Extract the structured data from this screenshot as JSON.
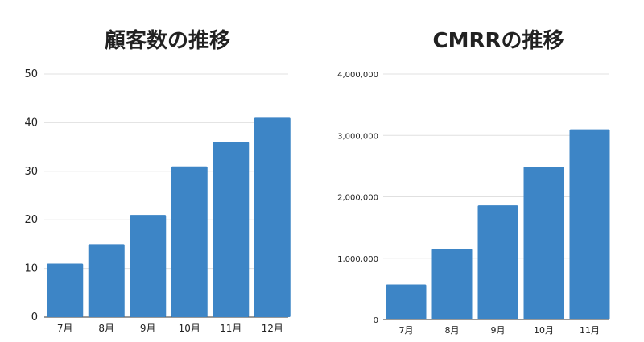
{
  "chart_data": [
    {
      "type": "bar",
      "title": "顧客数の推移",
      "categories": [
        "7月",
        "8月",
        "9月",
        "10月",
        "11月",
        "12月"
      ],
      "values": [
        11,
        15,
        21,
        31,
        36,
        41
      ],
      "xlabel": "",
      "ylabel": "",
      "ylim": [
        0,
        50
      ],
      "yticks": [
        "0",
        "10",
        "20",
        "30",
        "40",
        "50"
      ],
      "grid": true,
      "bar_color": "#3d85c6",
      "grid_color": "#e0e0e0"
    },
    {
      "type": "bar",
      "title": "CMRRの推移",
      "categories": [
        "7月",
        "8月",
        "9月",
        "10月",
        "11月"
      ],
      "values": [
        570000,
        1150000,
        1860000,
        2490000,
        3100000
      ],
      "xlabel": "",
      "ylabel": "",
      "ylim": [
        0,
        4000000
      ],
      "yticks": [
        "0",
        "1,000,000",
        "2,000,000",
        "3,000,000",
        "4,000,000"
      ],
      "grid": true,
      "bar_color": "#3d85c6",
      "grid_color": "#e0e0e0"
    }
  ]
}
